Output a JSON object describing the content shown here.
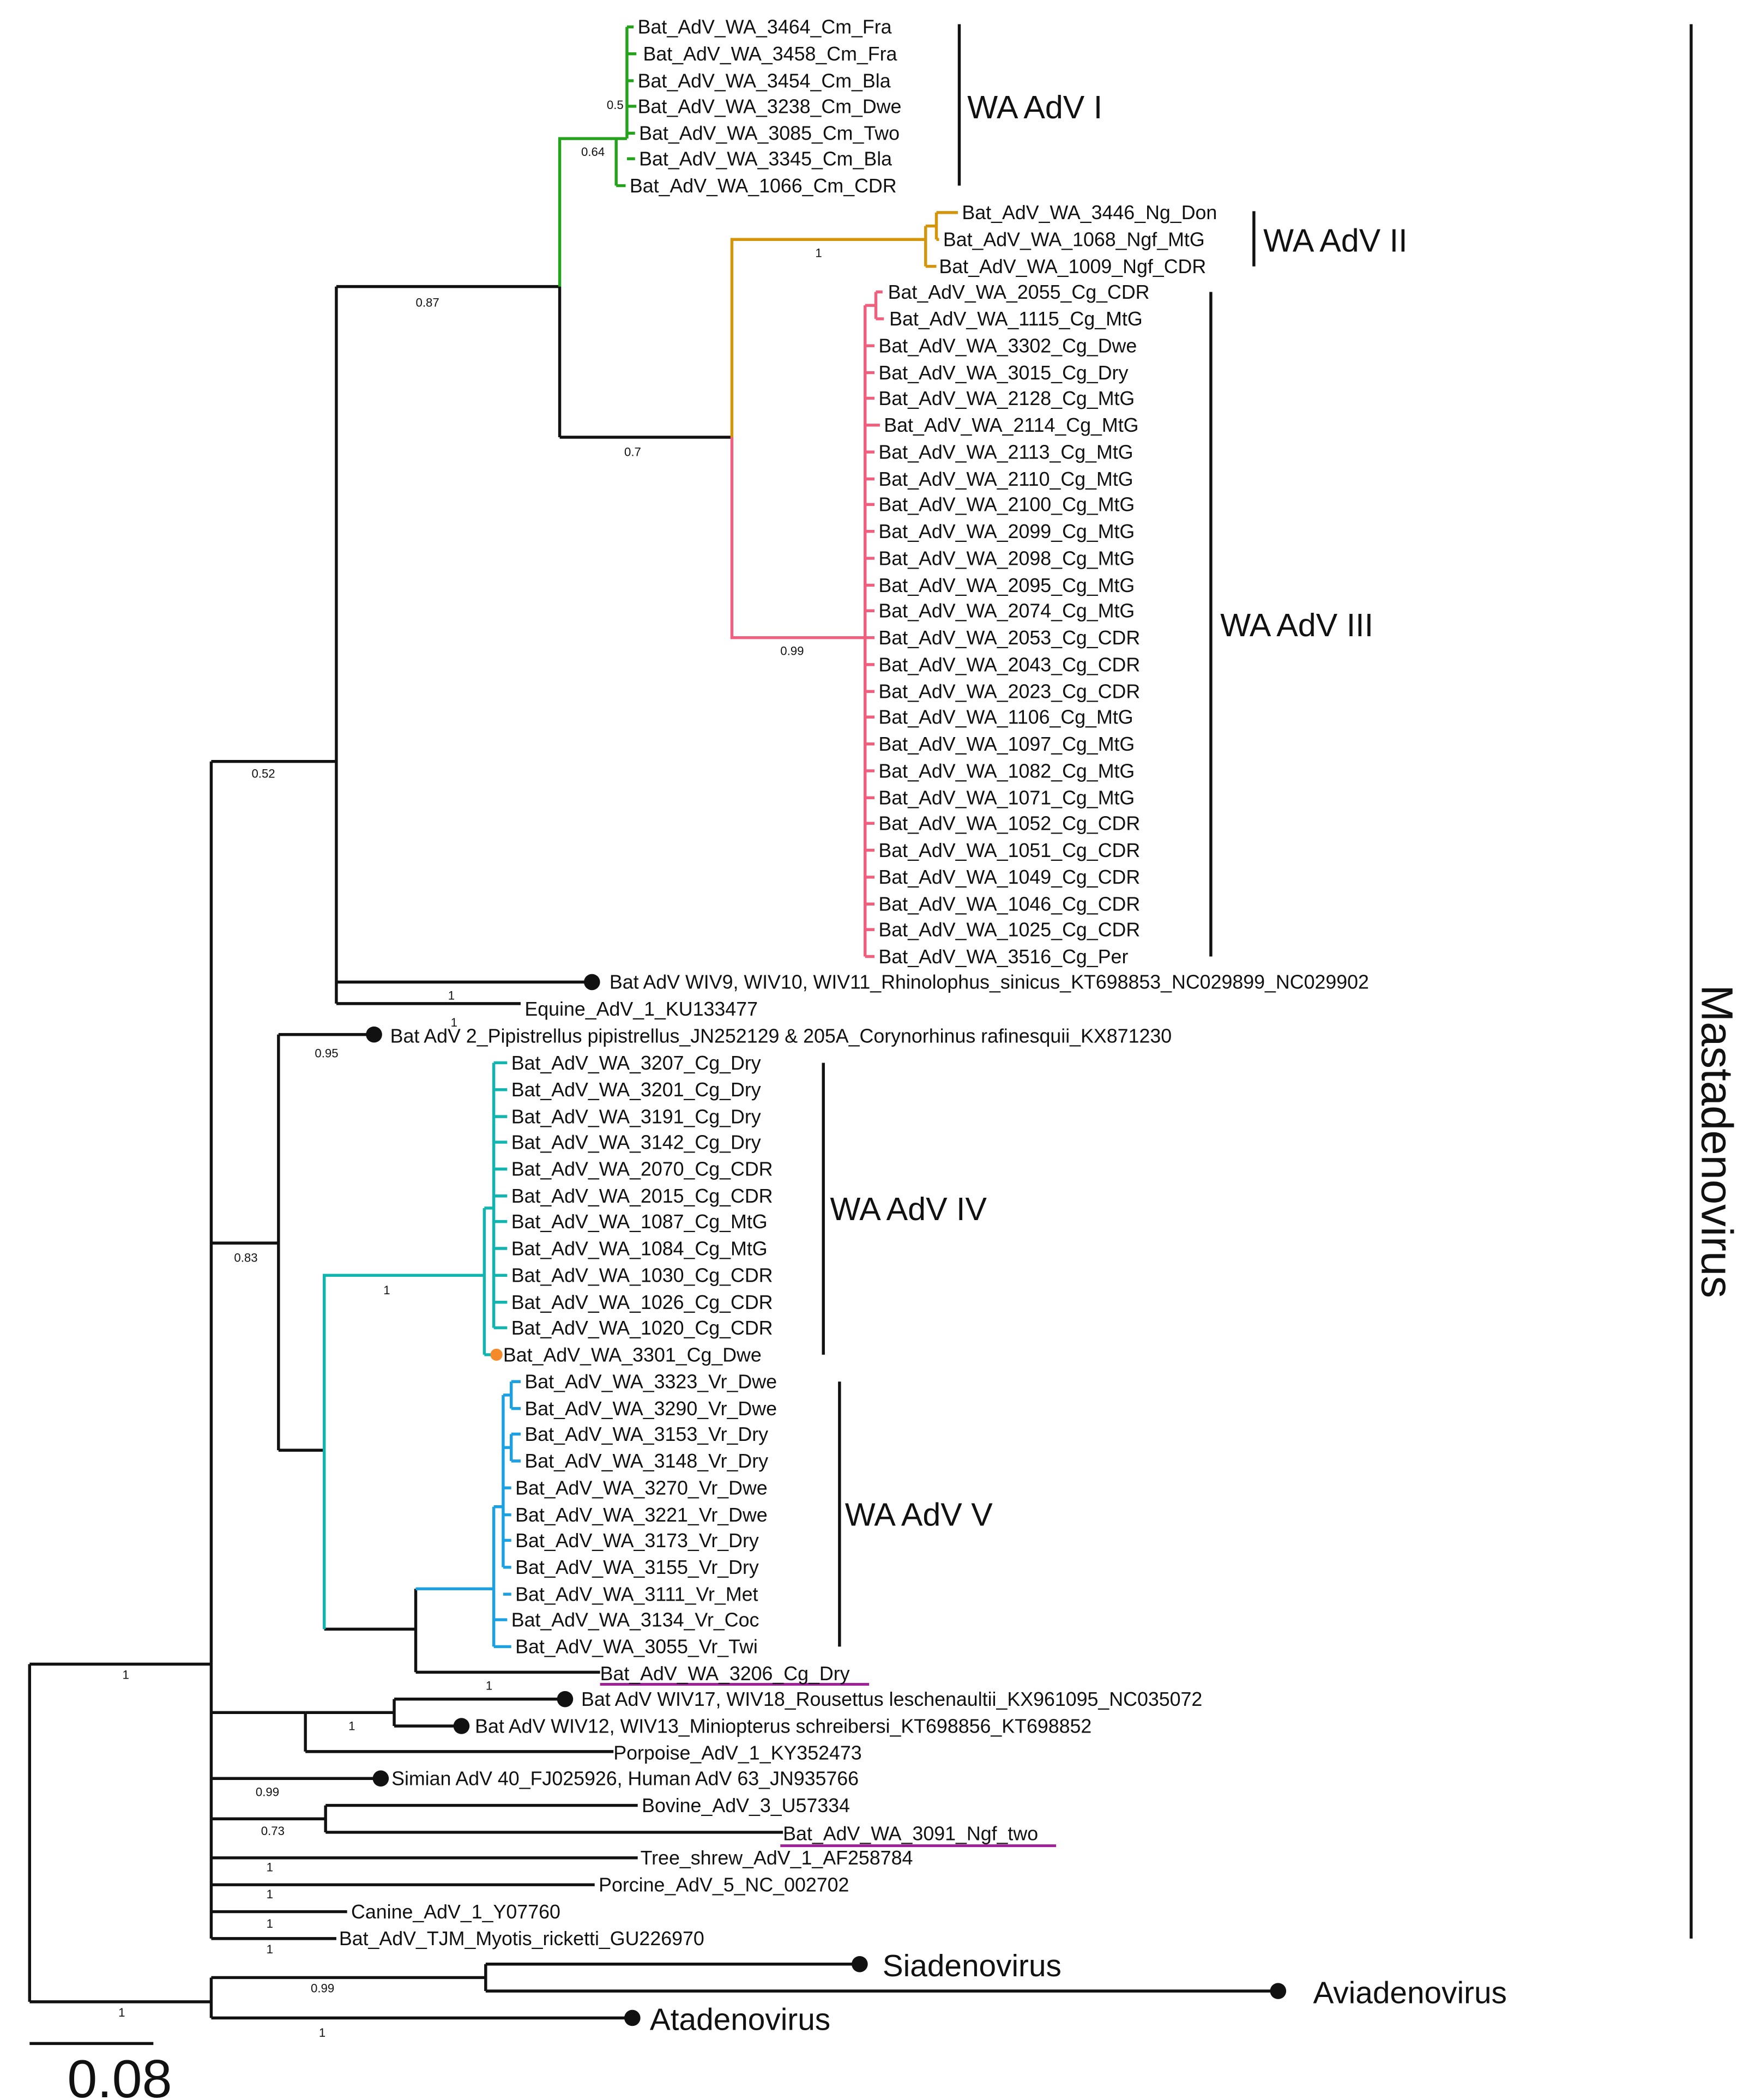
{
  "leaves": {
    "L0": "Bat_AdV_WA_3464_Cm_Fra",
    "L1": "Bat_AdV_WA_3458_Cm_Fra",
    "L2": "Bat_AdV_WA_3454_Cm_Bla",
    "L3": "Bat_AdV_WA_3238_Cm_Dwe",
    "L4": "Bat_AdV_WA_3085_Cm_Two",
    "L5": "Bat_AdV_WA_3345_Cm_Bla",
    "L6": "Bat_AdV_WA_1066_Cm_CDR",
    "L7": "Bat_AdV_WA_3446_Ng_Don",
    "L8": "Bat_AdV_WA_1068_Ngf_MtG",
    "L9": "Bat_AdV_WA_1009_Ngf_CDR",
    "L10": "Bat_AdV_WA_2055_Cg_CDR",
    "L11": "Bat_AdV_WA_1115_Cg_MtG",
    "L12": "Bat_AdV_WA_3302_Cg_Dwe",
    "L13": "Bat_AdV_WA_3015_Cg_Dry",
    "L14": "Bat_AdV_WA_2128_Cg_MtG",
    "L15": "Bat_AdV_WA_2114_Cg_MtG",
    "L16": "Bat_AdV_WA_2113_Cg_MtG",
    "L17": "Bat_AdV_WA_2110_Cg_MtG",
    "L18": "Bat_AdV_WA_2100_Cg_MtG",
    "L19": "Bat_AdV_WA_2099_Cg_MtG",
    "L20": "Bat_AdV_WA_2098_Cg_MtG",
    "L21": "Bat_AdV_WA_2095_Cg_MtG",
    "L22": "Bat_AdV_WA_2074_Cg_MtG",
    "L23": "Bat_AdV_WA_2053_Cg_CDR",
    "L24": "Bat_AdV_WA_2043_Cg_CDR",
    "L25": "Bat_AdV_WA_2023_Cg_CDR",
    "L26": "Bat_AdV_WA_1106_Cg_MtG",
    "L27": "Bat_AdV_WA_1097_Cg_MtG",
    "L28": "Bat_AdV_WA_1082_Cg_MtG",
    "L29": "Bat_AdV_WA_1071_Cg_MtG",
    "L30": "Bat_AdV_WA_1052_Cg_CDR",
    "L31": "Bat_AdV_WA_1051_Cg_CDR",
    "L32": "Bat_AdV_WA_1049_Cg_CDR",
    "L33": "Bat_AdV_WA_1046_Cg_CDR",
    "L34": "Bat_AdV_WA_1025_Cg_CDR",
    "L35": "Bat_AdV_WA_3516_Cg_Per",
    "L36": "Bat AdV WIV9, WIV10, WIV11_Rhinolophus_sinicus_KT698853_NC029899_NC029902",
    "L37": "Equine_AdV_1_KU133477",
    "L38": "Bat AdV 2_Pipistrellus pipistrellus_JN252129 & 205A_Corynorhinus rafinesquii_KX871230",
    "L39": "Bat_AdV_WA_3207_Cg_Dry",
    "L40": "Bat_AdV_WA_3201_Cg_Dry",
    "L41": "Bat_AdV_WA_3191_Cg_Dry",
    "L42": "Bat_AdV_WA_3142_Cg_Dry",
    "L43": "Bat_AdV_WA_2070_Cg_CDR",
    "L44": "Bat_AdV_WA_2015_Cg_CDR",
    "L45": "Bat_AdV_WA_1087_Cg_MtG",
    "L46": "Bat_AdV_WA_1084_Cg_MtG",
    "L47": "Bat_AdV_WA_1030_Cg_CDR",
    "L48": "Bat_AdV_WA_1026_Cg_CDR",
    "L49": "Bat_AdV_WA_1020_Cg_CDR",
    "L50": "Bat_AdV_WA_3301_Cg_Dwe",
    "L51": "Bat_AdV_WA_3323_Vr_Dwe",
    "L52": "Bat_AdV_WA_3290_Vr_Dwe",
    "L53": "Bat_AdV_WA_3153_Vr_Dry",
    "L54": "Bat_AdV_WA_3148_Vr_Dry",
    "L55": "Bat_AdV_WA_3270_Vr_Dwe",
    "L56": "Bat_AdV_WA_3221_Vr_Dwe",
    "L57": "Bat_AdV_WA_3173_Vr_Dry",
    "L58": "Bat_AdV_WA_3155_Vr_Dry",
    "L59": "Bat_AdV_WA_3111_Vr_Met",
    "L60": "Bat_AdV_WA_3134_Vr_Coc",
    "L61": "Bat_AdV_WA_3055_Vr_Twi",
    "L62": "Bat_AdV_WA_3206_Cg_Dry",
    "L63": "Bat AdV WIV17, WIV18_Rousettus leschenaultii_KX961095_NC035072",
    "L64": "Bat AdV WIV12, WIV13_Miniopterus schreibersi_KT698856_KT698852",
    "L65": "Porpoise_AdV_1_KY352473",
    "L66": "Simian AdV 40_FJ025926, Human AdV 63_JN935766",
    "L67": "Bovine_AdV_3_U57334",
    "L68": "Bat_AdV_WA_3091_Ngf_two",
    "L69": "Tree_shrew_AdV_1_AF258784",
    "L70": "Porcine_AdV_5_NC_002702",
    "L71": "Canine_AdV_1_Y07760",
    "L72": "Bat_AdV_TJM_Myotis_ricketti_GU226970",
    "G1": "Siadenovirus",
    "G2": "Aviadenovirus",
    "G3": "Atadenovirus"
  },
  "support": {
    "s_0_5": "0.5",
    "s_0_64": "0.64",
    "s_1_a": "1",
    "s_0_87": "0.87",
    "s_0_7": "0.7",
    "s_0_99_a": "0.99",
    "s_0_52": "0.52",
    "s_1_b": "1",
    "s_1_c": "1",
    "s_0_95": "0.95",
    "s_0_83": "0.83",
    "s_1_d": "1",
    "s_1_e": "1",
    "s_1_root": "1",
    "s_1_f": "1",
    "s_0_99_b": "0.99",
    "s_0_73": "0.73",
    "s_1_g": "1",
    "s_1_h": "1",
    "s_1_i": "1",
    "s_1_j": "1",
    "s_0_99_c": "0.99",
    "s_1_k": "1",
    "s_1_l": "1"
  },
  "clades": {
    "c1": "WA AdV I",
    "c2": "WA AdV II",
    "c3": "WA AdV III",
    "c4": "WA AdV IV",
    "c5": "WA AdV V"
  },
  "genus_label": "Mastadenovirus",
  "scale_label": "0.08",
  "colors": {
    "green": "#22a31a",
    "gold": "#d4950a",
    "pink": "#f0607e",
    "teal": "#10b5b0",
    "blue": "#1ba0e2",
    "magenta": "#a0209a",
    "orange": "#f58a2a",
    "black": "#111111"
  }
}
